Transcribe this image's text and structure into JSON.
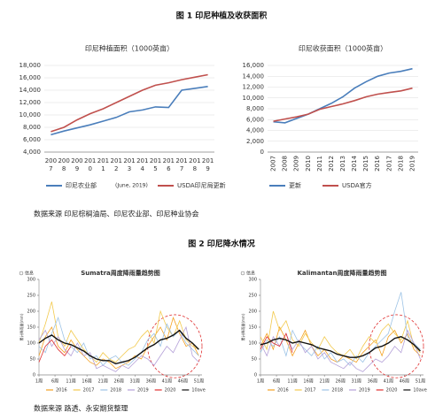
{
  "figure_1_title": "图 1 印尼种植及收获面积",
  "figure_1_source": "数据来源  印尼棕榈油局、印尼农业部、印尼种业协会",
  "figure_2_title": "图 2 印尼降水情况",
  "figure_2_source": "数据来源  路透、永安期货整理",
  "chart_data": [
    {
      "type": "line",
      "title": "印尼种植面积（1000英亩）",
      "note": "(June, 2019)",
      "categories": [
        "2007",
        "2008",
        "2009",
        "2010",
        "2011",
        "2012",
        "2013",
        "2014",
        "2015",
        "2016",
        "2017",
        "2018",
        "2019"
      ],
      "series": [
        {
          "name": "印尼农业部",
          "color": "#4a7ebb",
          "values": [
            6800,
            7400,
            7900,
            8400,
            9000,
            9600,
            10500,
            10800,
            11300,
            11200,
            14000,
            14300,
            14600
          ]
        },
        {
          "name": "USDA印尼局更新",
          "color": "#c0504d",
          "values": [
            7300,
            8000,
            9200,
            10200,
            11000,
            12000,
            13000,
            14000,
            14800,
            15200,
            15700,
            16100,
            16500
          ]
        }
      ],
      "ylim": [
        4000,
        18000
      ],
      "yticks": [
        {
          "value": 4000,
          "label": "4,000"
        },
        {
          "value": 6000,
          "label": "6,000"
        },
        {
          "value": 8000,
          "label": "8,000"
        },
        {
          "value": 10000,
          "label": "10,000"
        },
        {
          "value": 12000,
          "label": "12,000"
        },
        {
          "value": 14000,
          "label": "14,000"
        },
        {
          "value": 16000,
          "label": "16,000"
        },
        {
          "value": 18000,
          "label": "18,000"
        }
      ],
      "grid": true
    },
    {
      "type": "line",
      "title": "印尼收获面积（1000英亩）",
      "categories": [
        "2007",
        "2008",
        "2009",
        "2010",
        "2011",
        "2012",
        "2013",
        "2014",
        "2015",
        "2016",
        "2017",
        "2018",
        "2019"
      ],
      "series": [
        {
          "name": "更新",
          "color": "#4a7ebb",
          "values": [
            5600,
            5400,
            6200,
            7000,
            8000,
            9000,
            10200,
            11800,
            13000,
            14000,
            14600,
            14900,
            15400
          ]
        },
        {
          "name": "USDA官方",
          "color": "#c0504d",
          "values": [
            5700,
            6100,
            6500,
            7000,
            7900,
            8400,
            8900,
            9500,
            10200,
            10700,
            11000,
            11300,
            11800
          ]
        }
      ],
      "ylim": [
        0,
        16000
      ],
      "yticks": [
        0,
        {
          "value": 2000,
          "label": "2,000"
        },
        {
          "value": 4000,
          "label": "4,000"
        },
        {
          "value": 6000,
          "label": "6,000"
        },
        {
          "value": 8000,
          "label": "8,000"
        },
        {
          "value": 10000,
          "label": "10,000"
        },
        {
          "value": 12000,
          "label": "12,000"
        },
        {
          "value": 14000,
          "label": "14,000"
        },
        {
          "value": 16000,
          "label": "16,000"
        }
      ],
      "grid": true
    },
    {
      "type": "rain",
      "title": "Sumatra周度降雨量趋势图",
      "badge": "信息",
      "ylabel": "累计降雨量(mm)",
      "x": [
        1,
        3,
        5,
        7,
        9,
        11,
        13,
        15,
        17,
        19,
        21,
        23,
        25,
        27,
        29,
        31,
        33,
        35,
        37,
        39,
        41,
        43,
        45,
        47,
        49,
        51
      ],
      "series": [
        {
          "name": "2016",
          "color": "#f4a020",
          "values": [
            60,
            120,
            150,
            90,
            70,
            110,
            80,
            60,
            40,
            30,
            50,
            40,
            20,
            30,
            40,
            60,
            50,
            90,
            120,
            150,
            110,
            180,
            130,
            90,
            100,
            60
          ]
        },
        {
          "name": "2017",
          "color": "#f2c94c",
          "values": [
            100,
            160,
            230,
            120,
            90,
            140,
            110,
            80,
            60,
            40,
            70,
            50,
            40,
            60,
            80,
            90,
            120,
            140,
            100,
            200,
            150,
            120,
            170,
            110,
            90,
            80
          ]
        },
        {
          "name": "2018",
          "color": "#9dc3e6",
          "values": [
            90,
            70,
            130,
            180,
            110,
            90,
            70,
            100,
            50,
            60,
            30,
            50,
            60,
            40,
            30,
            50,
            70,
            110,
            130,
            90,
            160,
            120,
            140,
            100,
            80,
            60
          ]
        },
        {
          "name": "2019",
          "color": "#b4a0d8",
          "values": [
            110,
            140,
            90,
            120,
            80,
            60,
            100,
            60,
            70,
            20,
            30,
            20,
            10,
            30,
            20,
            40,
            60,
            50,
            30,
            60,
            90,
            70,
            110,
            150,
            60,
            40
          ]
        },
        {
          "name": "2020",
          "color": "#e03030",
          "values": [
            40,
            90,
            110,
            80,
            60,
            90,
            null,
            null,
            null,
            null,
            null,
            null,
            null,
            null,
            null,
            null,
            null,
            null,
            null,
            null,
            null,
            null,
            null,
            null,
            null,
            null
          ]
        },
        {
          "name": "10ave",
          "color": "#111111",
          "values": [
            100,
            115,
            125,
            110,
            100,
            95,
            85,
            75,
            60,
            50,
            45,
            45,
            35,
            40,
            45,
            55,
            70,
            85,
            95,
            110,
            115,
            125,
            140,
            115,
            100,
            80
          ]
        }
      ],
      "xlim": [
        1,
        52
      ],
      "xticks": [
        {
          "value": 1,
          "label": "1周"
        },
        {
          "value": 6,
          "label": "6周"
        },
        {
          "value": 11,
          "label": "11周"
        },
        {
          "value": 16,
          "label": "16周"
        },
        {
          "value": 21,
          "label": "21周"
        },
        {
          "value": 26,
          "label": "26周"
        },
        {
          "value": 31,
          "label": "31周"
        },
        {
          "value": 36,
          "label": "36周"
        },
        {
          "value": 41,
          "label": "41周"
        },
        {
          "value": 46,
          "label": "46周"
        },
        {
          "value": 51,
          "label": "51周"
        }
      ],
      "ylim": [
        0,
        300
      ],
      "yticks": [
        0,
        50,
        100,
        150,
        200,
        250,
        300
      ]
    },
    {
      "type": "rain",
      "title": "Kalimantan周度降雨量趋势图",
      "badge": "信息",
      "ylabel": "累计降雨量(mm)",
      "x": [
        1,
        3,
        5,
        7,
        9,
        11,
        13,
        15,
        17,
        19,
        21,
        23,
        25,
        27,
        29,
        31,
        33,
        35,
        37,
        39,
        41,
        43,
        45,
        47,
        49,
        51
      ],
      "series": [
        {
          "name": "2016",
          "color": "#f4a020",
          "values": [
            90,
            130,
            80,
            150,
            110,
            60,
            100,
            140,
            90,
            60,
            80,
            50,
            40,
            60,
            50,
            40,
            70,
            90,
            110,
            60,
            120,
            140,
            100,
            130,
            80,
            60
          ]
        },
        {
          "name": "2017",
          "color": "#f2c94c",
          "values": [
            120,
            80,
            200,
            140,
            170,
            110,
            90,
            130,
            100,
            80,
            120,
            90,
            70,
            60,
            80,
            50,
            90,
            120,
            100,
            140,
            160,
            130,
            110,
            170,
            90,
            70
          ]
        },
        {
          "name": "2018",
          "color": "#9dc3e6",
          "values": [
            70,
            110,
            90,
            120,
            60,
            140,
            100,
            80,
            60,
            90,
            50,
            70,
            40,
            50,
            30,
            60,
            40,
            70,
            90,
            110,
            130,
            200,
            260,
            120,
            100,
            80
          ]
        },
        {
          "name": "2019",
          "color": "#b4a0d8",
          "values": [
            100,
            60,
            120,
            90,
            130,
            80,
            110,
            70,
            90,
            50,
            70,
            40,
            30,
            20,
            40,
            20,
            10,
            30,
            50,
            40,
            60,
            90,
            70,
            140,
            100,
            50
          ]
        },
        {
          "name": "2020",
          "color": "#e03030",
          "values": [
            80,
            120,
            100,
            90,
            130,
            70,
            null,
            null,
            null,
            null,
            null,
            null,
            null,
            null,
            null,
            null,
            null,
            null,
            null,
            null,
            null,
            null,
            null,
            null,
            null,
            null
          ]
        },
        {
          "name": "10ave",
          "color": "#111111",
          "values": [
            95,
            100,
            110,
            115,
            110,
            100,
            105,
            100,
            95,
            85,
            80,
            75,
            65,
            60,
            55,
            55,
            60,
            70,
            85,
            90,
            100,
            115,
            120,
            110,
            95,
            75
          ]
        }
      ],
      "xlim": [
        1,
        52
      ],
      "xticks": [
        {
          "value": 1,
          "label": "1周"
        },
        {
          "value": 6,
          "label": "6周"
        },
        {
          "value": 11,
          "label": "11周"
        },
        {
          "value": 16,
          "label": "16周"
        },
        {
          "value": 21,
          "label": "21周"
        },
        {
          "value": 26,
          "label": "26周"
        },
        {
          "value": 31,
          "label": "31周"
        },
        {
          "value": 36,
          "label": "36周"
        },
        {
          "value": 41,
          "label": "41周"
        },
        {
          "value": 46,
          "label": "46周"
        },
        {
          "value": 51,
          "label": "51周"
        }
      ],
      "ylim": [
        0,
        300
      ],
      "yticks": [
        0,
        50,
        100,
        150,
        200,
        250,
        300
      ]
    }
  ]
}
